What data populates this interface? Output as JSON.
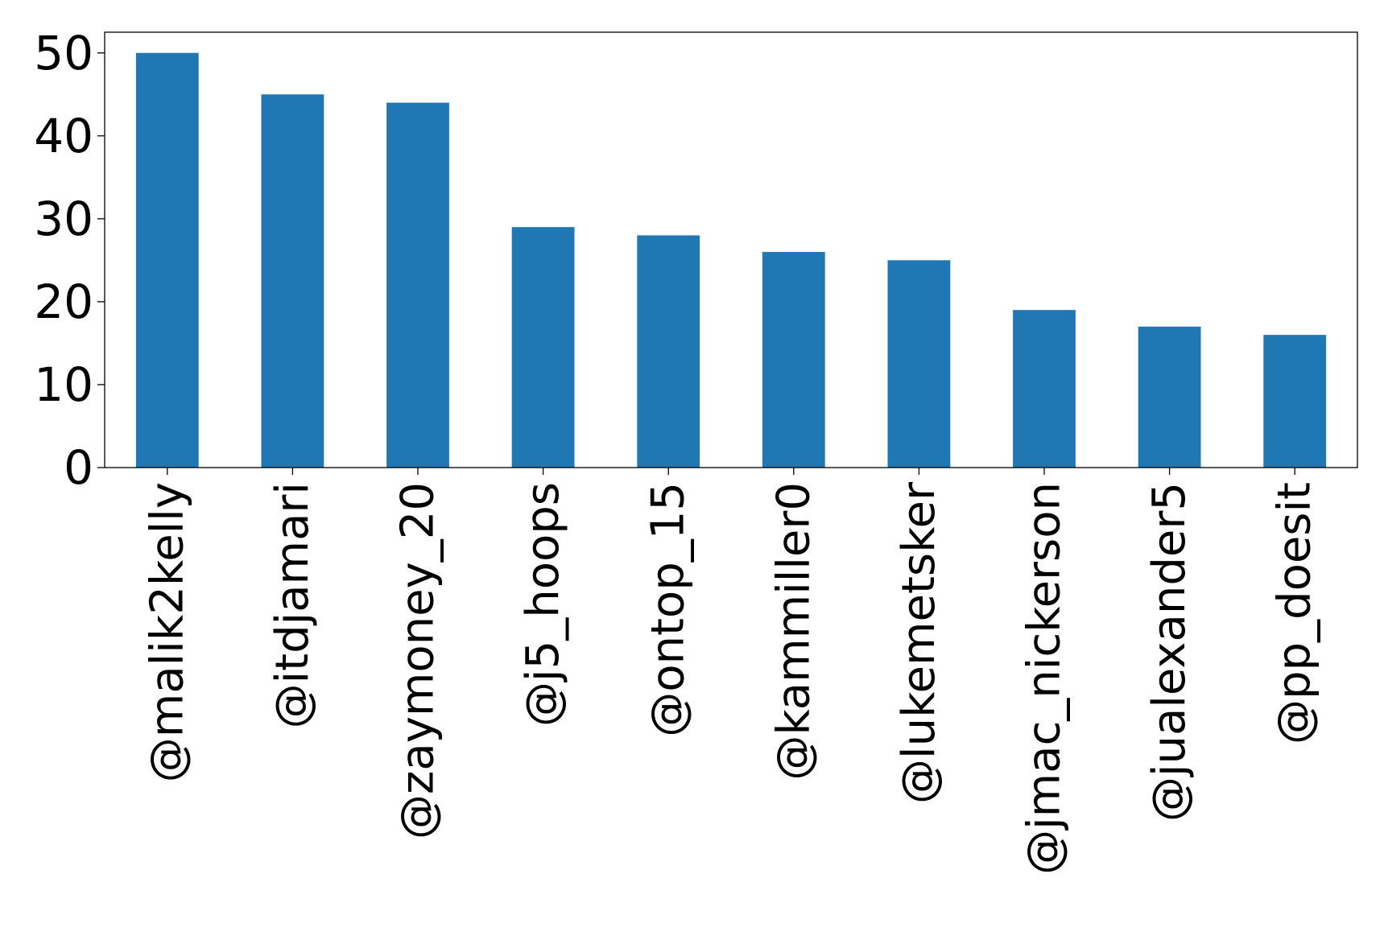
{
  "chart_data": {
    "type": "bar",
    "title": "",
    "xlabel": "",
    "ylabel": "",
    "categories": [
      "@malik2kelly",
      "@itdjamari",
      "@zaymoney_20",
      "@j5_hoops",
      "@ontop_15",
      "@kammiller0",
      "@lukemetsker",
      "@jmac_nickerson",
      "@jualexander5",
      "@pp_doesit"
    ],
    "values": [
      50,
      45,
      44,
      29,
      28,
      26,
      25,
      19,
      17,
      16
    ],
    "ylim": [
      0,
      52.5
    ],
    "yticks": [
      0,
      10,
      20,
      30,
      40,
      50
    ],
    "ytick_labels": [
      "0",
      "10",
      "20",
      "30",
      "40",
      "50"
    ],
    "grid": false,
    "bar_color": "#1f77b4"
  }
}
